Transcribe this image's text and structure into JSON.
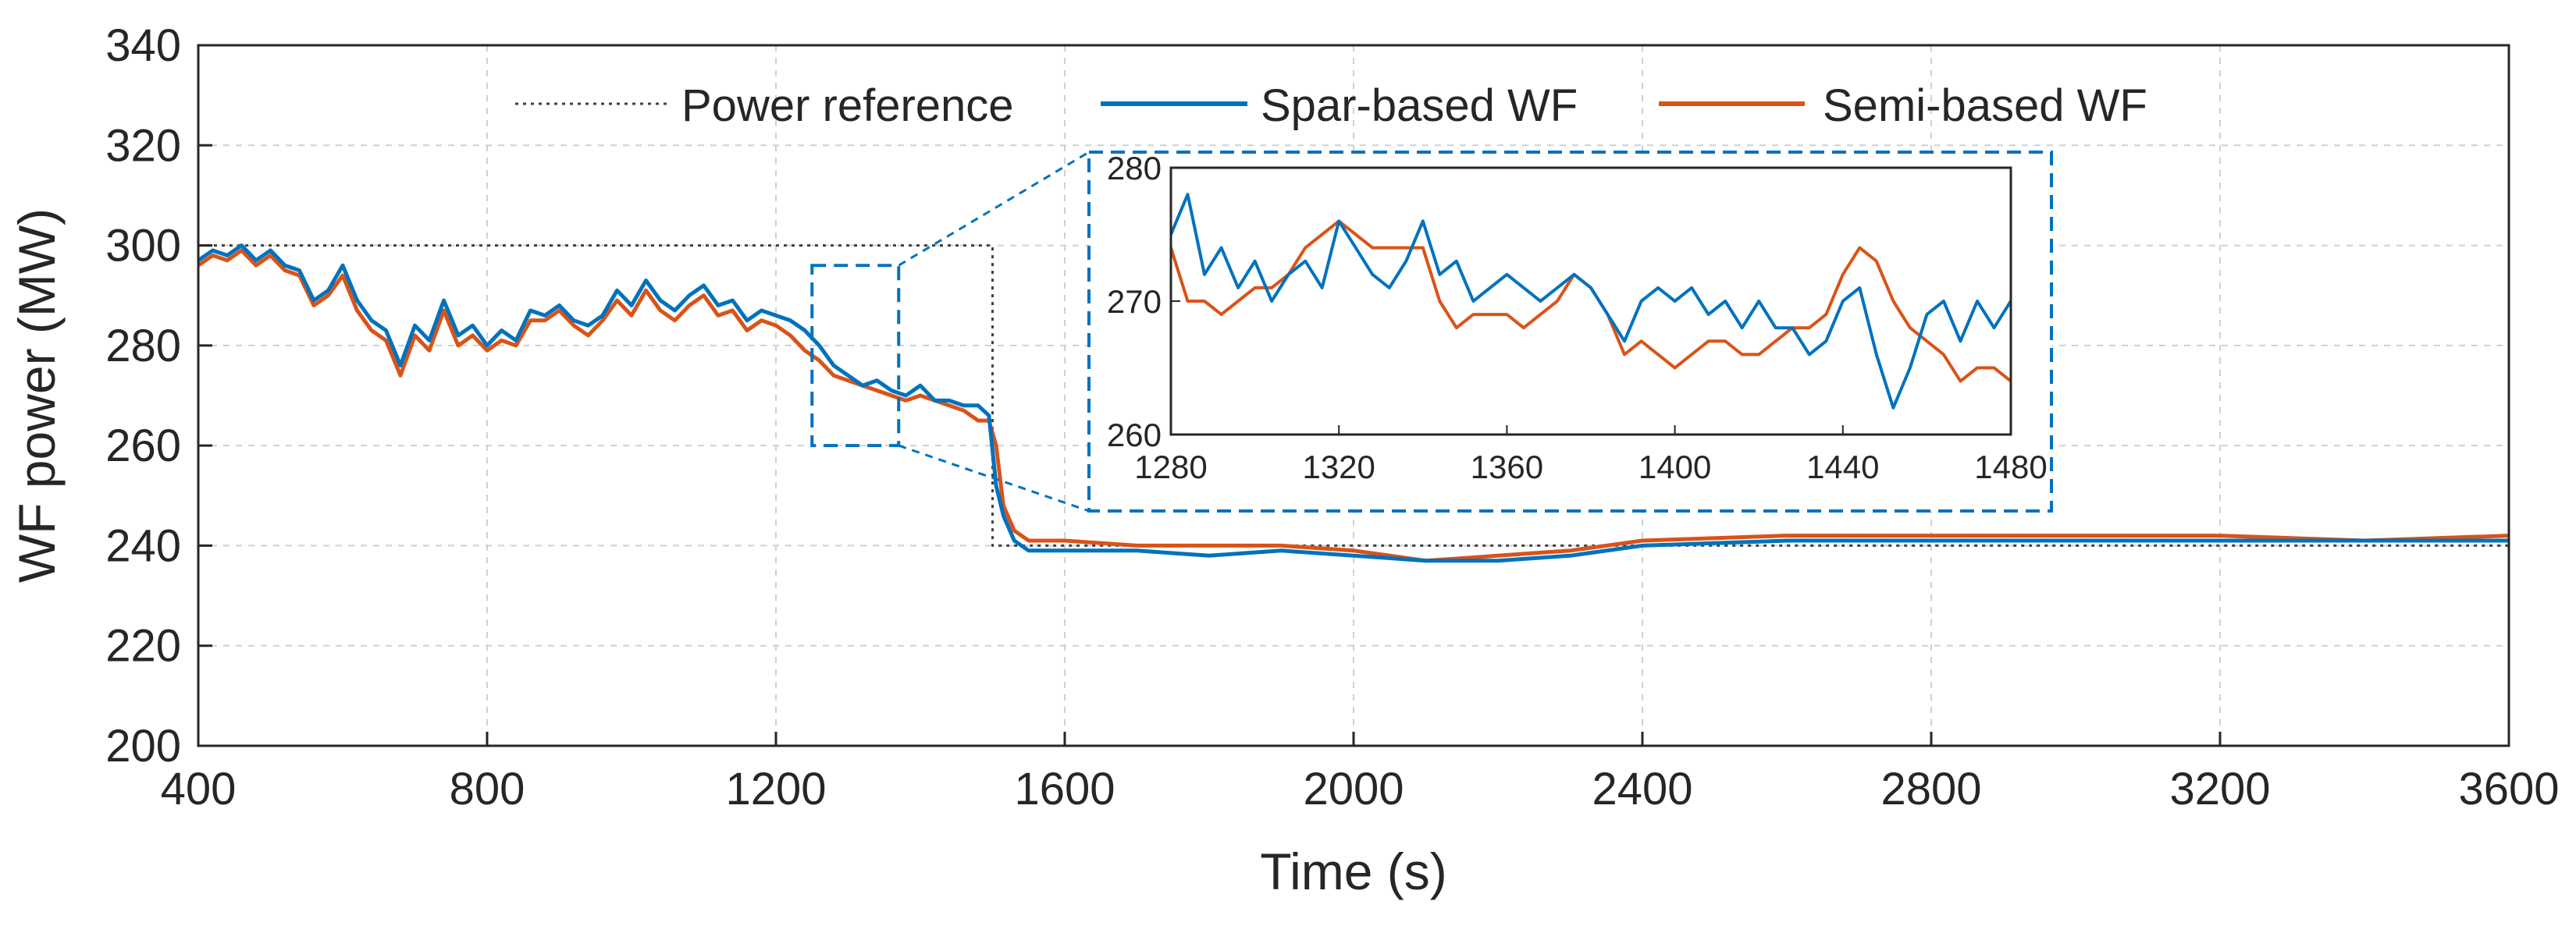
{
  "chart_data": {
    "type": "line",
    "xlabel": "Time (s)",
    "ylabel": "WF power (MW)",
    "xlim": [
      400,
      3600
    ],
    "ylim": [
      200,
      340
    ],
    "xticks": [
      400,
      800,
      1200,
      1600,
      2000,
      2400,
      2800,
      3200,
      3600
    ],
    "yticks": [
      200,
      220,
      240,
      260,
      280,
      300,
      320,
      340
    ],
    "grid": true,
    "legend_position": "top",
    "colors": {
      "reference": "#404040",
      "spar": "#0072BD",
      "semi": "#D95319",
      "inset_box": "#0072BD"
    },
    "series": [
      {
        "name": "Power reference",
        "style": "dotted",
        "x": [
          400,
          1500,
          1500,
          3600
        ],
        "y": [
          300,
          300,
          240,
          240
        ]
      },
      {
        "name": "Spar-based WF",
        "style": "solid",
        "x": [
          400,
          420,
          440,
          460,
          480,
          500,
          520,
          540,
          560,
          580,
          600,
          620,
          640,
          660,
          680,
          700,
          720,
          740,
          760,
          780,
          800,
          820,
          840,
          860,
          880,
          900,
          920,
          940,
          960,
          980,
          1000,
          1020,
          1040,
          1060,
          1080,
          1100,
          1120,
          1140,
          1160,
          1180,
          1200,
          1220,
          1240,
          1260,
          1280,
          1300,
          1320,
          1340,
          1360,
          1380,
          1400,
          1420,
          1440,
          1460,
          1480,
          1495,
          1505,
          1515,
          1530,
          1550,
          1600,
          1700,
          1800,
          1900,
          2000,
          2100,
          2200,
          2300,
          2400,
          2600,
          2800,
          3000,
          3200,
          3400,
          3600
        ],
        "y": [
          297,
          299,
          298,
          300,
          297,
          299,
          296,
          295,
          289,
          291,
          296,
          289,
          285,
          283,
          276,
          284,
          281,
          289,
          282,
          284,
          280,
          283,
          281,
          287,
          286,
          288,
          285,
          284,
          286,
          291,
          288,
          293,
          289,
          287,
          290,
          292,
          288,
          289,
          285,
          287,
          286,
          285,
          283,
          280,
          276,
          274,
          272,
          273,
          271,
          270,
          272,
          269,
          269,
          268,
          268,
          266,
          252,
          246,
          241,
          239,
          239,
          239,
          238,
          239,
          238,
          237,
          237,
          238,
          240,
          241,
          241,
          241,
          241,
          241,
          241
        ]
      },
      {
        "name": "Semi-based WF",
        "style": "solid",
        "x": [
          400,
          420,
          440,
          460,
          480,
          500,
          520,
          540,
          560,
          580,
          600,
          620,
          640,
          660,
          680,
          700,
          720,
          740,
          760,
          780,
          800,
          820,
          840,
          860,
          880,
          900,
          920,
          940,
          960,
          980,
          1000,
          1020,
          1040,
          1060,
          1080,
          1100,
          1120,
          1140,
          1160,
          1180,
          1200,
          1220,
          1240,
          1260,
          1280,
          1300,
          1320,
          1340,
          1360,
          1380,
          1400,
          1420,
          1440,
          1460,
          1480,
          1495,
          1505,
          1515,
          1530,
          1550,
          1600,
          1700,
          1800,
          1900,
          2000,
          2100,
          2200,
          2300,
          2400,
          2600,
          2800,
          3000,
          3200,
          3400,
          3600
        ],
        "y": [
          296,
          298,
          297,
          299,
          296,
          298,
          295,
          294,
          288,
          290,
          294,
          287,
          283,
          281,
          274,
          282,
          279,
          287,
          280,
          282,
          279,
          281,
          280,
          285,
          285,
          287,
          284,
          282,
          285,
          289,
          286,
          291,
          287,
          285,
          288,
          290,
          286,
          287,
          283,
          285,
          284,
          282,
          279,
          277,
          274,
          273,
          272,
          271,
          270,
          269,
          270,
          269,
          268,
          267,
          265,
          265,
          260,
          248,
          243,
          241,
          241,
          240,
          240,
          240,
          239,
          237,
          238,
          239,
          241,
          242,
          242,
          242,
          242,
          241,
          242
        ]
      }
    ],
    "highlight_box": {
      "x": [
        1250,
        1370
      ],
      "y": [
        260,
        296
      ]
    },
    "inset": {
      "xlim": [
        1280,
        1480
      ],
      "ylim": [
        260,
        280
      ],
      "xticks": [
        1280,
        1320,
        1360,
        1400,
        1440,
        1480
      ],
      "yticks": [
        260,
        270,
        280
      ],
      "series": [
        {
          "name": "Spar-based WF",
          "x": [
            1280,
            1284,
            1288,
            1292,
            1296,
            1300,
            1304,
            1308,
            1312,
            1316,
            1320,
            1324,
            1328,
            1332,
            1336,
            1340,
            1344,
            1348,
            1352,
            1356,
            1360,
            1364,
            1368,
            1372,
            1376,
            1380,
            1384,
            1388,
            1392,
            1396,
            1400,
            1404,
            1408,
            1412,
            1416,
            1420,
            1424,
            1428,
            1432,
            1436,
            1440,
            1444,
            1448,
            1452,
            1456,
            1460,
            1464,
            1468,
            1472,
            1476,
            1480
          ],
          "y": [
            275,
            278,
            272,
            274,
            271,
            273,
            270,
            272,
            273,
            271,
            276,
            274,
            272,
            271,
            273,
            276,
            272,
            273,
            270,
            271,
            272,
            271,
            270,
            271,
            272,
            271,
            269,
            267,
            270,
            271,
            270,
            271,
            269,
            270,
            268,
            270,
            268,
            268,
            266,
            267,
            270,
            271,
            266,
            262,
            265,
            269,
            270,
            267,
            270,
            268,
            270
          ]
        },
        {
          "name": "Semi-based WF",
          "x": [
            1280,
            1284,
            1288,
            1292,
            1296,
            1300,
            1304,
            1308,
            1312,
            1316,
            1320,
            1324,
            1328,
            1332,
            1336,
            1340,
            1344,
            1348,
            1352,
            1356,
            1360,
            1364,
            1368,
            1372,
            1376,
            1380,
            1384,
            1388,
            1392,
            1396,
            1400,
            1404,
            1408,
            1412,
            1416,
            1420,
            1424,
            1428,
            1432,
            1436,
            1440,
            1444,
            1448,
            1452,
            1456,
            1460,
            1464,
            1468,
            1472,
            1476,
            1480
          ],
          "y": [
            274,
            270,
            270,
            269,
            270,
            271,
            271,
            272,
            274,
            275,
            276,
            275,
            274,
            274,
            274,
            274,
            270,
            268,
            269,
            269,
            269,
            268,
            269,
            270,
            272,
            271,
            269,
            266,
            267,
            266,
            265,
            266,
            267,
            267,
            266,
            266,
            267,
            268,
            268,
            269,
            272,
            274,
            273,
            270,
            268,
            267,
            266,
            264,
            265,
            265,
            264
          ]
        }
      ]
    }
  }
}
